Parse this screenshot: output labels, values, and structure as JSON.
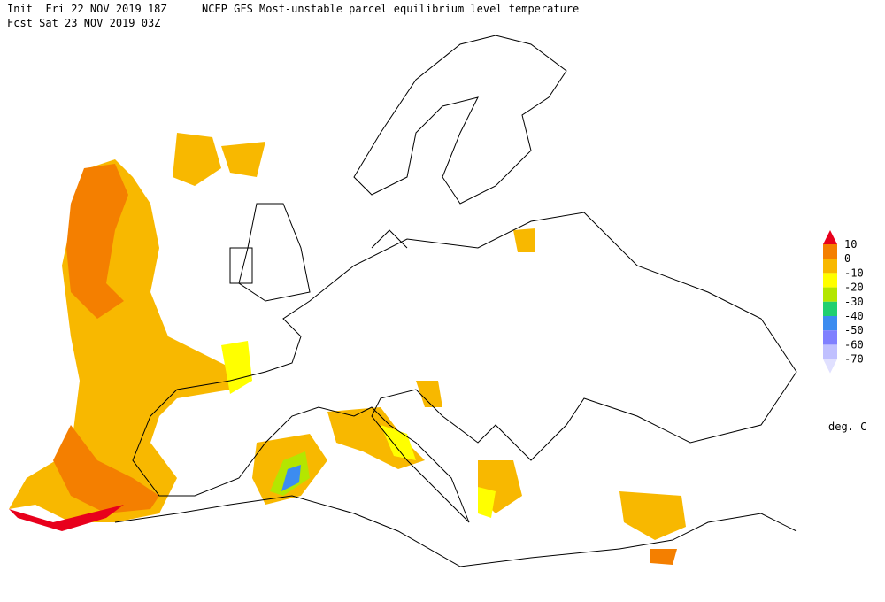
{
  "header": {
    "init": "Init  Fri 22 NOV 2019 18Z",
    "title": "NCEP GFS Most-unstable parcel equilibrium level temperature",
    "forecast": "Fcst Sat 23 NOV 2019 03Z"
  },
  "legend": {
    "levels": [
      10,
      0,
      -10,
      -20,
      -30,
      -40,
      -50,
      -60,
      -70
    ],
    "colors": [
      "#e8001c",
      "#f47f00",
      "#f8b800",
      "#ffff00",
      "#b4e600",
      "#20d070",
      "#3c8cf0",
      "#8080ff",
      "#c0c0ff",
      "#e0e0ff"
    ],
    "unit": "deg. C"
  }
}
